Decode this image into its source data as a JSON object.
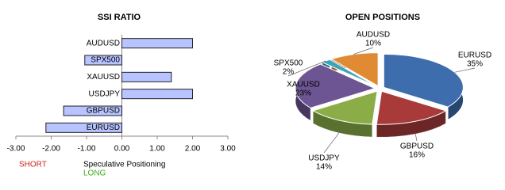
{
  "chart_data": [
    {
      "type": "bar",
      "orientation": "horizontal",
      "title": "SSI RATIO",
      "categories": [
        "AUDUSD",
        "SPX500",
        "XAUUSD",
        "USDJPY",
        "GBPUSD",
        "EURUSD"
      ],
      "values": [
        2.0,
        -1.05,
        1.4,
        2.0,
        -1.65,
        -2.15
      ],
      "color": "#b8c4ff",
      "xlim": [
        -3,
        3
      ],
      "xticks": [
        {
          "value": -3,
          "label": "-3.00"
        },
        {
          "value": -2,
          "label": "-2.00"
        },
        {
          "value": -1,
          "label": "-1.00"
        },
        {
          "value": 0,
          "label": "0.00"
        },
        {
          "value": 1,
          "label": "1.00"
        },
        {
          "value": 2,
          "label": "2.00"
        },
        {
          "value": 3,
          "label": "3.00"
        }
      ],
      "x_label": "Speculative Positioning",
      "annotations": [
        {
          "text": "SHORT",
          "color": "#cc2222"
        },
        {
          "text": "LONG",
          "color": "#44aa22"
        }
      ]
    },
    {
      "type": "pie",
      "title": "OPEN POSITIONS",
      "categories": [
        "EURUSD",
        "GBPUSD",
        "USDJPY",
        "XAUUSD",
        "SPX500",
        "AUDUSD"
      ],
      "values": [
        35,
        16,
        14,
        23,
        2,
        10
      ],
      "value_labels": [
        "35%",
        "16%",
        "14%",
        "23%",
        "2%",
        "10%"
      ],
      "colors": [
        "#3d6dad",
        "#a83a3a",
        "#8aad48",
        "#6c5592",
        "#3ea2b8",
        "#e08a34"
      ]
    }
  ]
}
